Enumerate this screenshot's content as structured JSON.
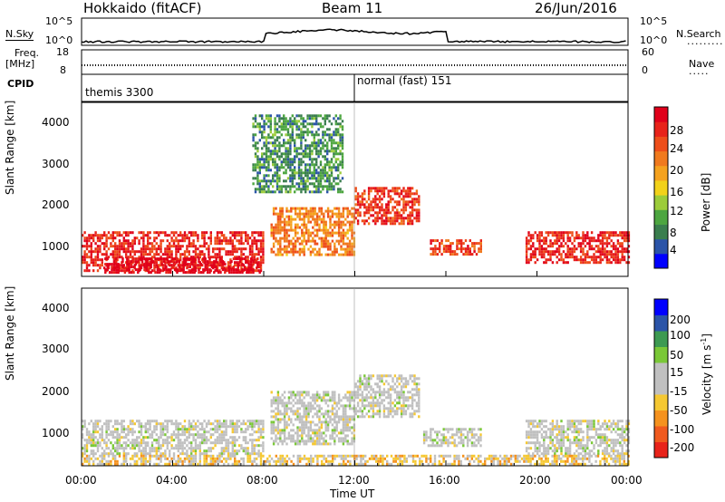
{
  "header": {
    "station": "Hokkaido (fitACF)",
    "beam": "Beam 11",
    "date": "26/Jun/2016"
  },
  "top_panels": {
    "nsky_label": "N.Sky",
    "nsky_ticks": [
      "10^5",
      "10^0"
    ],
    "nsearch_label": "N.Search",
    "nsearch_ticks": [
      "10^5",
      "10^0"
    ],
    "freq_label_1": "Freq.",
    "freq_label_2": "[MHz]",
    "freq_ticks": [
      "18",
      "8"
    ],
    "nave_label": "Nave",
    "nave_ticks": [
      "60",
      "0"
    ],
    "cpid_label": "CPID",
    "cpid_segments": [
      {
        "start_hour": 0,
        "text": "themis 3300"
      },
      {
        "start_hour": 12,
        "text": "normal (fast) 151"
      }
    ]
  },
  "chart_data": [
    {
      "type": "heatmap",
      "title": "",
      "xlabel": "Time UT",
      "ylabel": "Slant Range [km]",
      "x_ticks": [
        "00:00",
        "04:00",
        "08:00",
        "12:00",
        "16:00",
        "20:00",
        "00:00"
      ],
      "xlim": [
        0,
        24
      ],
      "y_ticks": [
        "1000",
        "2000",
        "3000",
        "4000"
      ],
      "ylim": [
        180,
        4500
      ],
      "colorbar": {
        "label": "Power [dB]",
        "ticks": [
          "4",
          "8",
          "12",
          "16",
          "20",
          "24",
          "28"
        ],
        "range": [
          0,
          30
        ],
        "colors": [
          "#0000ff",
          "#2b54a8",
          "#3a7e4e",
          "#4da640",
          "#9ccc3a",
          "#f2d21a",
          "#f5a21e",
          "#f07a1e",
          "#ee4e1a",
          "#e8231a",
          "#e0001a"
        ]
      },
      "echo_regions": [
        {
          "t0": 0,
          "t1": 8.0,
          "r0": 300,
          "r1": 1300,
          "value": 26
        },
        {
          "t0": 1.0,
          "t1": 7.8,
          "r0": 300,
          "r1": 650,
          "value": 29
        },
        {
          "t0": 8.3,
          "t1": 12,
          "r0": 700,
          "r1": 1900,
          "value": 20
        },
        {
          "t0": 12,
          "t1": 14.8,
          "r0": 1500,
          "r1": 2400,
          "value": 25
        },
        {
          "t0": 15.3,
          "t1": 17.5,
          "r0": 700,
          "r1": 1100,
          "value": 24
        },
        {
          "t0": 19.5,
          "t1": 24,
          "r0": 500,
          "r1": 1300,
          "value": 26
        },
        {
          "t0": 7.5,
          "t1": 11.5,
          "r0": 2300,
          "r1": 4200,
          "value": 8
        }
      ]
    },
    {
      "type": "heatmap",
      "title": "",
      "xlabel": "Time UT",
      "ylabel": "Slant Range [km]",
      "x_ticks": [
        "00:00",
        "04:00",
        "08:00",
        "12:00",
        "16:00",
        "20:00",
        "00:00"
      ],
      "xlim": [
        0,
        24
      ],
      "y_ticks": [
        "1000",
        "2000",
        "3000",
        "4000"
      ],
      "ylim": [
        180,
        4500
      ],
      "colorbar": {
        "label_main": "Velocity [m s",
        "label_exp": "-1",
        "label_end": "]",
        "ticks": [
          "200",
          "100",
          "50",
          "15",
          "-15",
          "-50",
          "-100",
          "-200"
        ],
        "range": [
          -250,
          250
        ],
        "colors": [
          "#e8231a",
          "#f05a1e",
          "#f5921e",
          "#f5c832",
          "#c0c0c0",
          "#c0c0c0",
          "#7ac837",
          "#3d9a52",
          "#2b54a8",
          "#0000ff"
        ]
      },
      "echo_regions": [
        {
          "t0": 0,
          "t1": 8.0,
          "r0": 500,
          "r1": 1300,
          "value": 0
        },
        {
          "t0": 8.3,
          "t1": 12,
          "r0": 700,
          "r1": 2000,
          "value": 0
        },
        {
          "t0": 12,
          "t1": 14.8,
          "r0": 1400,
          "r1": 2400,
          "value": 0
        },
        {
          "t0": 15.0,
          "t1": 17.5,
          "r0": 700,
          "r1": 1100,
          "value": 0
        },
        {
          "t0": 19.5,
          "t1": 24,
          "r0": 500,
          "r1": 1300,
          "value": 0
        },
        {
          "t0": 0,
          "t1": 24,
          "r0": 200,
          "r1": 450,
          "value": -60
        }
      ]
    }
  ],
  "colors": {
    "frame": "#000000",
    "background": "#ffffff"
  }
}
